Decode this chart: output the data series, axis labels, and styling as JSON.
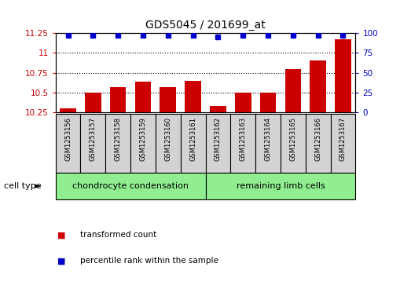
{
  "title": "GDS5045 / 201699_at",
  "samples": [
    "GSM1253156",
    "GSM1253157",
    "GSM1253158",
    "GSM1253159",
    "GSM1253160",
    "GSM1253161",
    "GSM1253162",
    "GSM1253163",
    "GSM1253164",
    "GSM1253165",
    "GSM1253166",
    "GSM1253167"
  ],
  "transformed_count": [
    10.3,
    10.5,
    10.57,
    10.64,
    10.57,
    10.65,
    10.33,
    10.5,
    10.5,
    10.79,
    10.9,
    11.17
  ],
  "percentile_rank": [
    97,
    97,
    97,
    97,
    97,
    97,
    95,
    97,
    97,
    97,
    97,
    97
  ],
  "ylim_left": [
    10.25,
    11.25
  ],
  "ylim_right": [
    0,
    100
  ],
  "yticks_left": [
    10.25,
    10.5,
    10.75,
    11.0,
    11.25
  ],
  "yticks_right": [
    0,
    25,
    50,
    75,
    100
  ],
  "cell_type_groups": [
    {
      "label": "chondrocyte condensation",
      "indices": [
        0,
        1,
        2,
        3,
        4,
        5
      ],
      "color": "#90ee90"
    },
    {
      "label": "remaining limb cells",
      "indices": [
        6,
        7,
        8,
        9,
        10,
        11
      ],
      "color": "#90ee90"
    }
  ],
  "bar_color": "#cc0000",
  "dot_color": "#0000cc",
  "bar_bottom": 10.25,
  "tick_label_color_left": "#cc0000",
  "tick_label_color_right": "#0000cc",
  "cell_type_label": "cell type",
  "legend_items": [
    {
      "label": "transformed count",
      "color": "#cc0000"
    },
    {
      "label": "percentile rank within the sample",
      "color": "#0000cc"
    }
  ],
  "sample_box_color": "#d3d3d3",
  "fig_width": 5.23,
  "fig_height": 3.63,
  "dpi": 100
}
